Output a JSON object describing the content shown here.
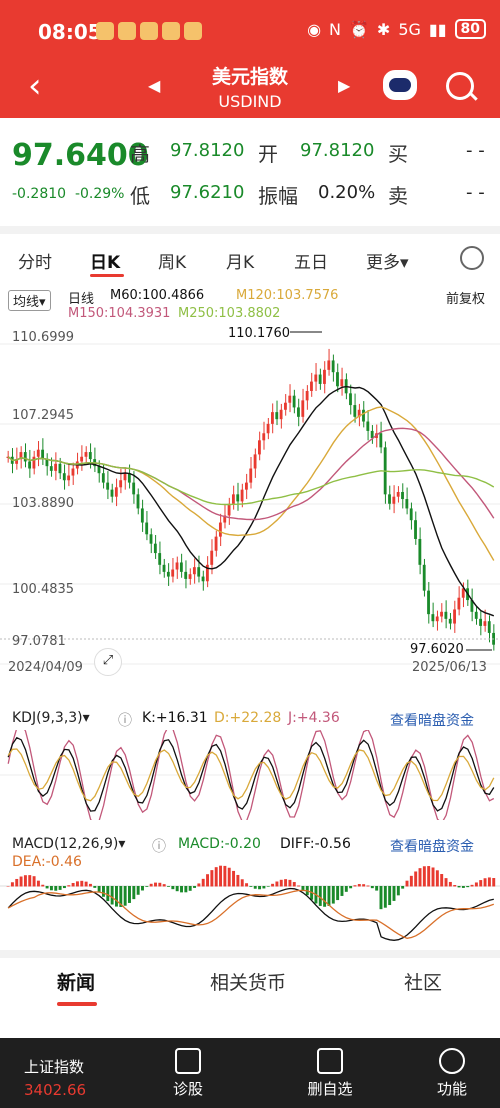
{
  "status_bar": {
    "time": "08:05",
    "battery": "80",
    "network": "5G"
  },
  "header": {
    "title": "美元指数",
    "subtitle": "USDIND"
  },
  "quote": {
    "price": "97.6400",
    "change": "-0.2810",
    "change_pct": "-0.29%",
    "high_label": "高",
    "high": "97.8120",
    "open_label": "开",
    "open": "97.8120",
    "buy_label": "买",
    "buy": "- -",
    "low_label": "低",
    "low": "97.6210",
    "amp_label": "振幅",
    "amplitude": "0.20%",
    "sell_label": "卖",
    "sell": "- -"
  },
  "period_tabs": [
    "分时",
    "日K",
    "周K",
    "月K",
    "五日",
    "更多▾"
  ],
  "active_period": "日K",
  "chart_legend": {
    "ma_button": "均线▾",
    "period": "日线",
    "m60": "M60:100.4866",
    "m120": "M120:103.7576",
    "m150": "M150:104.3931",
    "m250": "M250:103.8802",
    "adjust": "前复权"
  },
  "colors": {
    "up": "#e83a30",
    "down": "#1a8a2a",
    "m60": "#111111",
    "m120": "#d9a93a",
    "m150": "#c2587a",
    "m250": "#8fbf45",
    "brand": "#e83a30"
  },
  "chart_data": [
    {
      "type": "candlestick",
      "title": "USDIND 日线",
      "y_ticks": [
        "110.6999",
        "107.2945",
        "103.8890",
        "100.4835",
        "97.0781"
      ],
      "ylim": [
        97.0781,
        110.6999
      ],
      "x_start_label": "2024/04/09",
      "x_end_label": "2025/06/13",
      "annotations": {
        "max": "110.1760",
        "min": "97.6020"
      },
      "close_series": [
        105.9,
        105.6,
        105.8,
        106.1,
        105.7,
        105.4,
        105.9,
        106.2,
        105.8,
        105.5,
        105.3,
        105.6,
        105.2,
        104.9,
        105.1,
        105.4,
        105.7,
        105.9,
        106.1,
        105.8,
        105.5,
        105.2,
        104.8,
        104.5,
        104.2,
        104.6,
        104.9,
        105.2,
        104.8,
        104.3,
        103.7,
        103.1,
        102.6,
        102.2,
        101.8,
        101.3,
        101.0,
        100.8,
        101.1,
        101.4,
        101.0,
        100.7,
        100.9,
        101.2,
        100.8,
        100.6,
        101.3,
        101.9,
        102.5,
        103.1,
        103.4,
        103.9,
        104.3,
        104.0,
        104.5,
        104.8,
        105.4,
        106.0,
        106.6,
        106.9,
        107.3,
        107.8,
        107.5,
        107.9,
        108.2,
        108.5,
        108.0,
        107.6,
        108.3,
        108.7,
        109.1,
        109.4,
        109.0,
        109.6,
        110.0,
        109.5,
        108.9,
        109.2,
        108.6,
        108.1,
        107.6,
        107.9,
        107.4,
        107.0,
        106.7,
        106.9,
        106.3,
        104.3,
        103.9,
        104.2,
        104.4,
        104.1,
        103.7,
        103.2,
        102.4,
        101.3,
        100.2,
        99.2,
        98.9,
        99.1,
        99.3,
        99.0,
        98.8,
        99.4,
        99.9,
        100.3,
        99.8,
        99.3,
        99.0,
        98.7,
        98.9,
        98.4,
        97.9
      ]
    },
    {
      "type": "line",
      "title": "KDJ",
      "series_labels": {
        "name": "KDJ(9,3,3)▾",
        "k": "K:+16.31",
        "d": "D:+22.28",
        "j": "J:+4.36"
      },
      "link": "查看暗盘资金"
    },
    {
      "type": "bar",
      "title": "MACD",
      "series_labels": {
        "name": "MACD(12,26,9)▾",
        "macd": "MACD:-0.20",
        "diff": "DIFF:-0.56",
        "dea": "DEA:-0.46"
      },
      "link": "查看暗盘资金"
    }
  ],
  "bottom_tabs": [
    "新闻",
    "相关货币",
    "社区"
  ],
  "navbar": {
    "index_name": "上证指数",
    "index_value": "3402.66",
    "items": [
      "诊股",
      "删自选",
      "功能"
    ]
  }
}
